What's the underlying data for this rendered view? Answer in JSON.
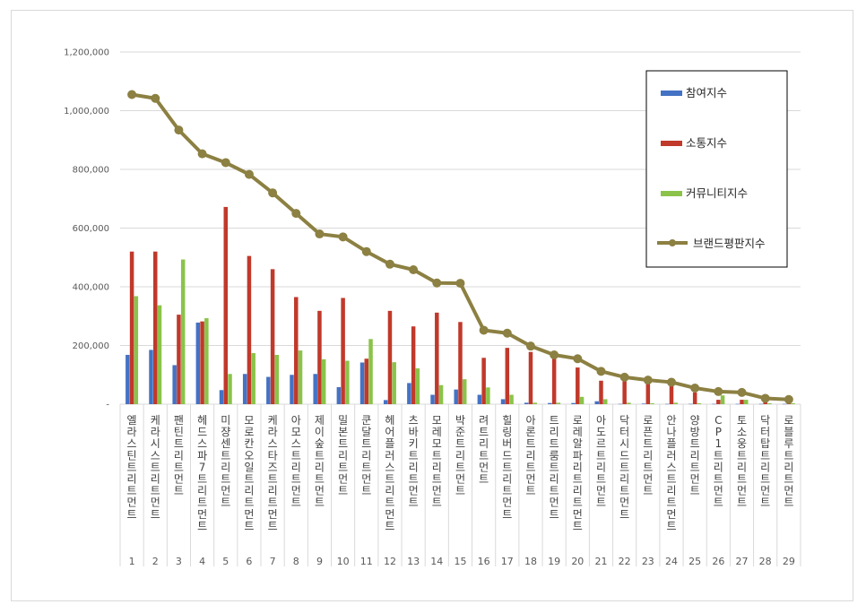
{
  "chart_data": {
    "type": "bar",
    "title": "",
    "xlabel": "",
    "ylabel": "",
    "ylim": [
      0,
      1200000
    ],
    "yticks": [
      "-",
      "200,000",
      "400,000",
      "600,000",
      "800,000",
      "1,000,000",
      "1,200,000"
    ],
    "grid": true,
    "legend_position": "top-right",
    "categories": [
      {
        "num": "1",
        "name": "엘라스틴트리트먼트"
      },
      {
        "num": "2",
        "name": "케라시스트리트먼트"
      },
      {
        "num": "3",
        "name": "팬틴트리트먼트"
      },
      {
        "num": "4",
        "name": "헤드스파7트리트먼트"
      },
      {
        "num": "5",
        "name": "미쟝센트리트먼트"
      },
      {
        "num": "6",
        "name": "모로칸오일트리트먼트"
      },
      {
        "num": "7",
        "name": "케라스타즈트리트먼트"
      },
      {
        "num": "8",
        "name": "아모스트리트먼트"
      },
      {
        "num": "9",
        "name": "제이숲트리트먼트"
      },
      {
        "num": "10",
        "name": "밀본트리트먼트"
      },
      {
        "num": "11",
        "name": "쿤달트리트먼트"
      },
      {
        "num": "12",
        "name": "헤어플러스트리트먼트"
      },
      {
        "num": "13",
        "name": "츠바키트리트먼트"
      },
      {
        "num": "14",
        "name": "모레모트리트먼트"
      },
      {
        "num": "15",
        "name": "박준트리트먼트"
      },
      {
        "num": "16",
        "name": "려트리트먼트"
      },
      {
        "num": "17",
        "name": "힐링버드트리트먼트"
      },
      {
        "num": "18",
        "name": "아론트리트먼트"
      },
      {
        "num": "19",
        "name": "트리트룸트리트먼트"
      },
      {
        "num": "20",
        "name": "로레알파리트리트먼트"
      },
      {
        "num": "21",
        "name": "아도르트리트먼트"
      },
      {
        "num": "22",
        "name": "닥터시드트리트먼트"
      },
      {
        "num": "23",
        "name": "로픈트리트먼트"
      },
      {
        "num": "24",
        "name": "안나플러스트리트먼트"
      },
      {
        "num": "25",
        "name": "양방트리트먼트"
      },
      {
        "num": "26",
        "name": "CP1트리트먼트"
      },
      {
        "num": "27",
        "name": "토소웅트리트먼트"
      },
      {
        "num": "28",
        "name": "닥터탑트리트먼트"
      },
      {
        "num": "29",
        "name": "로블루트리트먼트"
      }
    ],
    "series": [
      {
        "name": "참여지수",
        "type": "bar",
        "color": "#4472c4",
        "values": [
          168000,
          185000,
          133000,
          278000,
          48000,
          103000,
          93000,
          100000,
          103000,
          58000,
          142000,
          14000,
          72000,
          32000,
          50000,
          32000,
          17000,
          5000,
          4000,
          4000,
          10000,
          1000,
          2000,
          1000,
          1000,
          1000,
          1000,
          1000,
          1000
        ]
      },
      {
        "name": "소통지수",
        "type": "bar",
        "color": "#c0392b",
        "values": [
          520000,
          520000,
          305000,
          282000,
          672000,
          505000,
          460000,
          365000,
          318000,
          362000,
          155000,
          318000,
          265000,
          312000,
          280000,
          158000,
          192000,
          178000,
          155000,
          125000,
          80000,
          78000,
          75000,
          65000,
          40000,
          15000,
          15000,
          8000,
          5000
        ]
      },
      {
        "name": "커뮤니티지수",
        "type": "bar",
        "color": "#8bc34a",
        "values": [
          368000,
          337000,
          493000,
          293000,
          103000,
          174000,
          168000,
          183000,
          153000,
          148000,
          222000,
          143000,
          122000,
          65000,
          85000,
          57000,
          32000,
          5000,
          5000,
          25000,
          17000,
          5000,
          3000,
          5000,
          3000,
          30000,
          15000,
          3000,
          3000
        ]
      },
      {
        "name": "브랜드평판지수",
        "type": "line",
        "color": "#8c8042",
        "values": [
          1055000,
          1042000,
          934000,
          853000,
          823000,
          783000,
          720000,
          650000,
          580000,
          570000,
          520000,
          477000,
          458000,
          413000,
          412000,
          252000,
          242000,
          198000,
          168000,
          155000,
          112000,
          92000,
          82000,
          75000,
          55000,
          43000,
          40000,
          20000,
          16000
        ]
      }
    ]
  }
}
